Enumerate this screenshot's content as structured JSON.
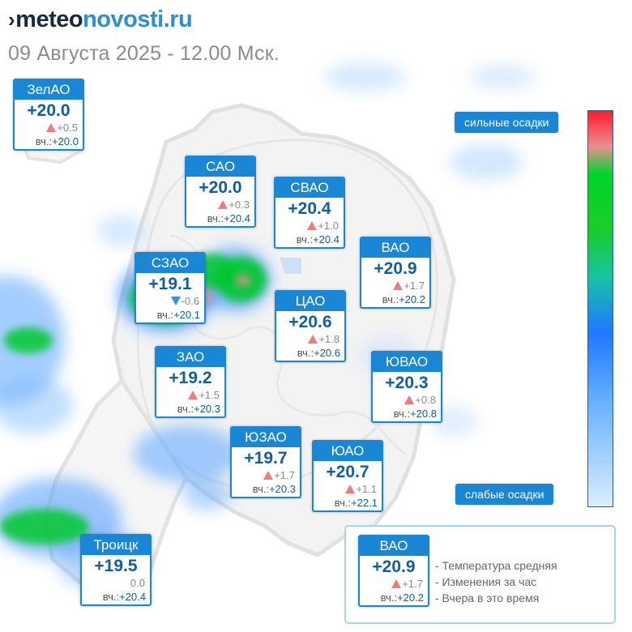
{
  "header": {
    "logo_mark": "›",
    "logo_part1": "meteo",
    "logo_part2": "novosti.ru",
    "datetime": "09 Августа 2025 - 12.00 Мск."
  },
  "colors": {
    "card_header": "#1a86d6",
    "temperature": "#0e5ea1",
    "rise_arrow": "#f07b7b",
    "fall_arrow": "#3a8fe0",
    "precip_light": "#5aa6ff",
    "precip_heavy": "#00cc33"
  },
  "districts": [
    {
      "name": "ЗелАО",
      "temp": "+20.0",
      "trend": "up",
      "change": "+0.5",
      "yesterday_label": "вч.:",
      "yesterday": "+20.0"
    },
    {
      "name": "САО",
      "temp": "+20.0",
      "trend": "up",
      "change": "+0.3",
      "yesterday_label": "вч.:",
      "yesterday": "+20.4"
    },
    {
      "name": "СВАО",
      "temp": "+20.4",
      "trend": "up",
      "change": "+1.0",
      "yesterday_label": "вч.:",
      "yesterday": "+20.4"
    },
    {
      "name": "ВАО",
      "temp": "+20.9",
      "trend": "up",
      "change": "+1.7",
      "yesterday_label": "вч.:",
      "yesterday": "+20.2"
    },
    {
      "name": "СЗАО",
      "temp": "+19.1",
      "trend": "down",
      "change": "-0.6",
      "yesterday_label": "вч.:",
      "yesterday": "+20.1"
    },
    {
      "name": "ЦАО",
      "temp": "+20.6",
      "trend": "up",
      "change": "+1.8",
      "yesterday_label": "вч.:",
      "yesterday": "+20.6"
    },
    {
      "name": "ЗАО",
      "temp": "+19.2",
      "trend": "up",
      "change": "+1.5",
      "yesterday_label": "вч.:",
      "yesterday": "+20.3"
    },
    {
      "name": "ЮВАО",
      "temp": "+20.3",
      "trend": "up",
      "change": "+0.8",
      "yesterday_label": "вч.:",
      "yesterday": "+20.8"
    },
    {
      "name": "ЮЗАО",
      "temp": "+19.7",
      "trend": "up",
      "change": "+1.7",
      "yesterday_label": "вч.:",
      "yesterday": "+20.3"
    },
    {
      "name": "ЮАО",
      "temp": "+20.7",
      "trend": "up",
      "change": "+1.1",
      "yesterday_label": "вч.:",
      "yesterday": "+22.1"
    },
    {
      "name": "Троицк",
      "temp": "+19.5",
      "trend": "none",
      "change": "0.0",
      "yesterday_label": "вч.:",
      "yesterday": "+20.4"
    }
  ],
  "precip_scale": {
    "top_label": "сильные осадки",
    "bottom_label": "слабые осадки"
  },
  "legend": {
    "sample": {
      "name": "ВАО",
      "temp": "+20.9",
      "trend": "up",
      "change": "+1.7",
      "yesterday_label": "вч.:",
      "yesterday": "+20.2"
    },
    "items": [
      "- Температура средняя",
      "- Изменения за час",
      "- Вчера в это время"
    ]
  }
}
